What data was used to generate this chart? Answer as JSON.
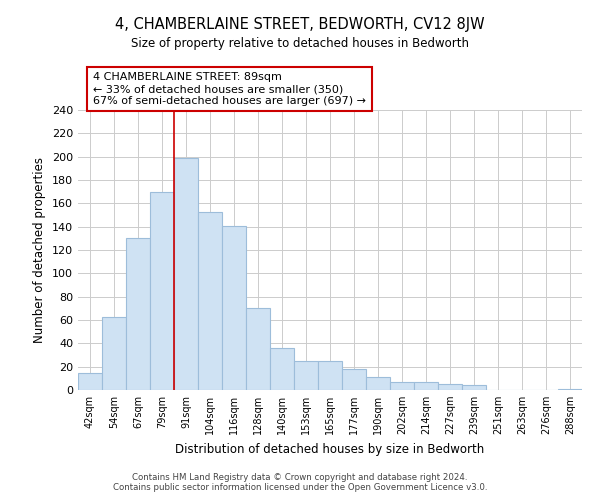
{
  "title": "4, CHAMBERLAINE STREET, BEDWORTH, CV12 8JW",
  "subtitle": "Size of property relative to detached houses in Bedworth",
  "xlabel": "Distribution of detached houses by size in Bedworth",
  "ylabel": "Number of detached properties",
  "categories": [
    "42sqm",
    "54sqm",
    "67sqm",
    "79sqm",
    "91sqm",
    "104sqm",
    "116sqm",
    "128sqm",
    "140sqm",
    "153sqm",
    "165sqm",
    "177sqm",
    "190sqm",
    "202sqm",
    "214sqm",
    "227sqm",
    "239sqm",
    "251sqm",
    "263sqm",
    "276sqm",
    "288sqm"
  ],
  "values": [
    15,
    63,
    130,
    170,
    199,
    153,
    141,
    70,
    36,
    25,
    25,
    18,
    11,
    7,
    7,
    5,
    4,
    0,
    0,
    0,
    1
  ],
  "bar_color": "#cfe2f3",
  "bar_edge_color": "#9dbdda",
  "highlight_index": 4,
  "highlight_line_color": "#cc0000",
  "ylim": [
    0,
    240
  ],
  "yticks": [
    0,
    20,
    40,
    60,
    80,
    100,
    120,
    140,
    160,
    180,
    200,
    220,
    240
  ],
  "annotation_title": "4 CHAMBERLAINE STREET: 89sqm",
  "annotation_line1": "← 33% of detached houses are smaller (350)",
  "annotation_line2": "67% of semi-detached houses are larger (697) →",
  "annotation_box_color": "#ffffff",
  "annotation_box_edge_color": "#cc0000",
  "footer_line1": "Contains HM Land Registry data © Crown copyright and database right 2024.",
  "footer_line2": "Contains public sector information licensed under the Open Government Licence v3.0.",
  "background_color": "#ffffff",
  "grid_color": "#cccccc"
}
